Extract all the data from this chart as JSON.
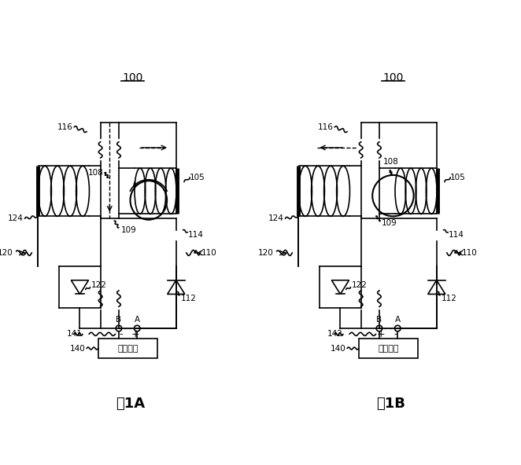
{
  "bg": "#ffffff",
  "lc": "#000000",
  "lw": 1.2,
  "ctrl_text": "控制电路",
  "fig1A_label": "图1A",
  "fig1B_label": "图1B",
  "label_100": "100"
}
